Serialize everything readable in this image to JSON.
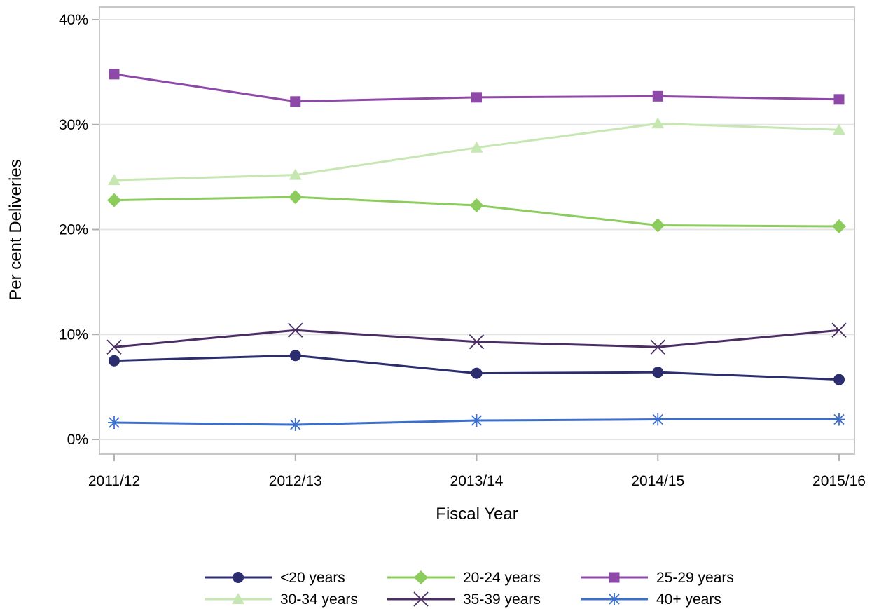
{
  "chart_data": {
    "type": "line",
    "title": "",
    "xlabel": "Fiscal Year",
    "ylabel": "Per cent Deliveries",
    "categories": [
      "2011/12",
      "2012/13",
      "2013/14",
      "2014/15",
      "2015/16"
    ],
    "ylim": [
      0,
      40
    ],
    "yticks": [
      0,
      10,
      20,
      30,
      40
    ],
    "ytick_labels": [
      "0%",
      "10%",
      "20%",
      "30%",
      "40%"
    ],
    "grid": "horizontal",
    "legend_position": "bottom",
    "series": [
      {
        "name": "<20 years",
        "color": "#2b2d6e",
        "marker": "circle",
        "values": [
          7.5,
          8.0,
          6.3,
          6.4,
          5.7
        ]
      },
      {
        "name": "20-24 years",
        "color": "#8ccc5c",
        "marker": "diamond",
        "values": [
          22.8,
          23.1,
          22.3,
          20.4,
          20.3
        ]
      },
      {
        "name": "25-29 years",
        "color": "#8e48a8",
        "marker": "square",
        "values": [
          34.8,
          32.2,
          32.6,
          32.7,
          32.4
        ]
      },
      {
        "name": "30-34 years",
        "color": "#c6e6b2",
        "marker": "triangle",
        "values": [
          24.7,
          25.2,
          27.8,
          30.1,
          29.5
        ]
      },
      {
        "name": "35-39 years",
        "color": "#4a2d63",
        "marker": "x",
        "values": [
          8.8,
          10.4,
          9.3,
          8.8,
          10.4
        ]
      },
      {
        "name": "40+ years",
        "color": "#3c6fcc",
        "marker": "star",
        "values": [
          1.6,
          1.4,
          1.8,
          1.9,
          1.9
        ]
      }
    ]
  }
}
